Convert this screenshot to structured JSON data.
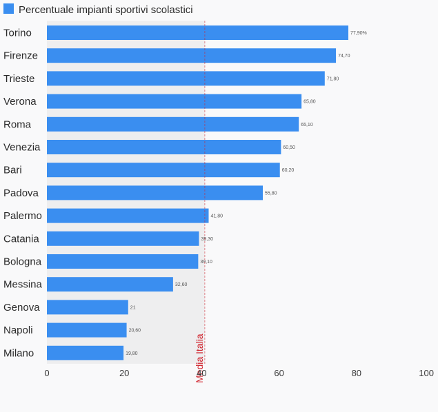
{
  "chart_data": {
    "type": "bar",
    "orientation": "horizontal",
    "legend": {
      "label": "Percentuale impianti sportivi scolastici",
      "color": "#3a8ef0",
      "position": "top-left"
    },
    "categories": [
      "Torino",
      "Firenze",
      "Trieste",
      "Verona",
      "Roma",
      "Venezia",
      "Bari",
      "Padova",
      "Palermo",
      "Catania",
      "Bologna",
      "Messina",
      "Genova",
      "Napoli",
      "Milano"
    ],
    "series": [
      {
        "name": "Percentuale impianti sportivi scolastici",
        "color": "#3a8ef0",
        "values": [
          77.9,
          74.7,
          71.8,
          65.8,
          65.1,
          60.5,
          60.2,
          55.8,
          41.8,
          39.3,
          39.1,
          32.6,
          21,
          20.6,
          19.8
        ],
        "labels": [
          "77,90%",
          "74,70",
          "71,80",
          "65,80",
          "65,10",
          "60,50",
          "60,20",
          "55,80",
          "41,80",
          "39,30",
          "39,10",
          "32,60",
          "21",
          "20,60",
          "19,80"
        ]
      }
    ],
    "xlim": [
      0,
      100
    ],
    "x_ticks": [
      0,
      20,
      40,
      60,
      80,
      100
    ],
    "grid": false,
    "reference_line": {
      "value": 40.8,
      "label": "Media Italia",
      "color": "#d0202a",
      "shade_color": "#eeeeef"
    }
  }
}
